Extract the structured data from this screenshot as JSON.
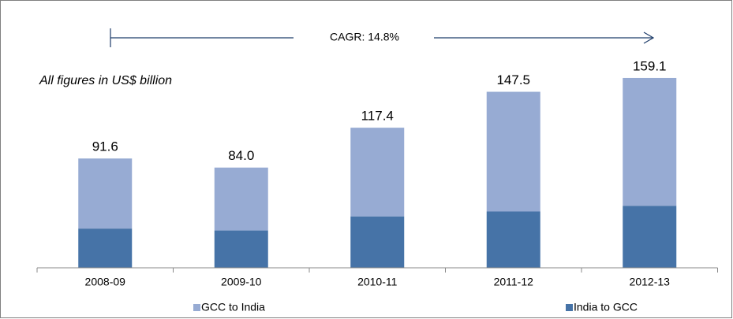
{
  "chart_data": {
    "type": "stacked_bar",
    "subtitle": "All figures in US$ billion",
    "annotation": "CAGR: 14.8%",
    "categories": [
      "2008-09",
      "2009-10",
      "2010-11",
      "2011-12",
      "2012-13"
    ],
    "series": [
      {
        "name": "India to GCC",
        "color": "#4673a7",
        "values": [
          32.9,
          31.3,
          43.1,
          47.2,
          52.0
        ]
      },
      {
        "name": "GCC to India",
        "color": "#97abd3",
        "values": [
          58.7,
          52.7,
          74.3,
          100.3,
          107.1
        ]
      }
    ],
    "totals": [
      91.6,
      84.0,
      117.4,
      147.5,
      159.1
    ],
    "total_labels": [
      "91.6",
      "84.0",
      "117.4",
      "147.5",
      "159.1"
    ]
  }
}
